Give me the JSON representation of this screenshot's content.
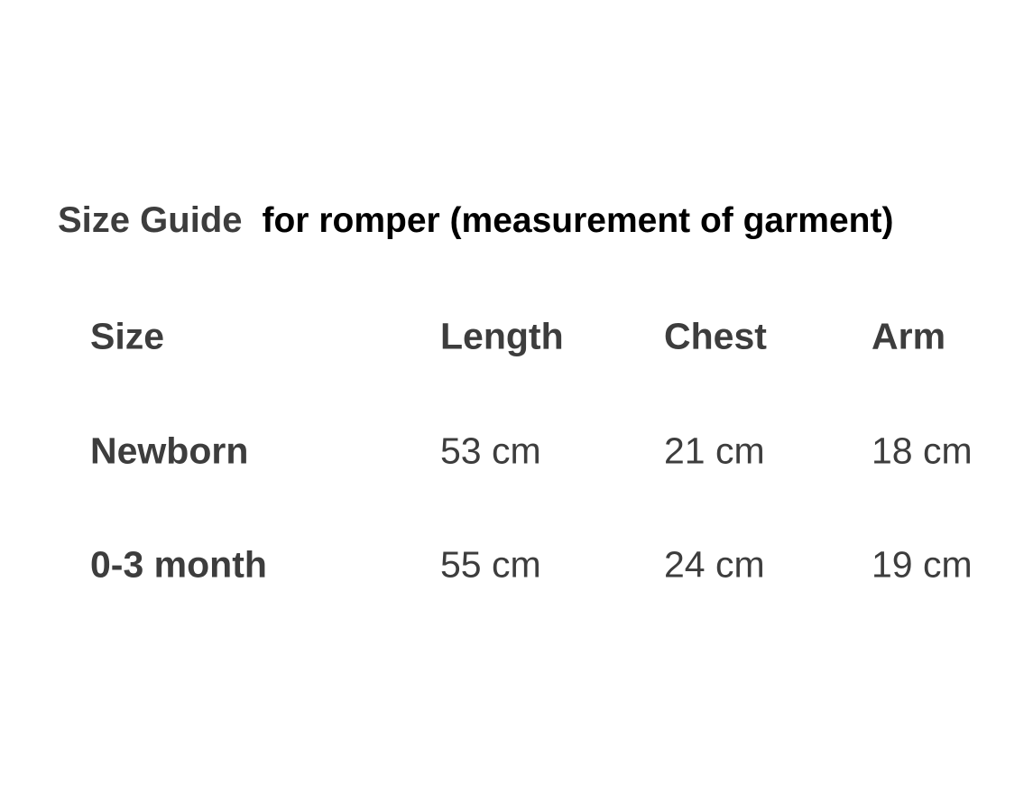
{
  "title": {
    "prefix": "Size Guide",
    "suffix": "for romper (measurement of garment)"
  },
  "table": {
    "headers": [
      "Size",
      "Length",
      "Chest",
      "Arm"
    ],
    "rows": [
      [
        "Newborn",
        "53 cm",
        "21 cm",
        "18 cm"
      ],
      [
        "0-3 month",
        "55 cm",
        "24 cm",
        "19 cm"
      ]
    ]
  },
  "colors": {
    "text_gray": "#3d3d3d",
    "text_black": "#000000",
    "background": "#ffffff"
  }
}
